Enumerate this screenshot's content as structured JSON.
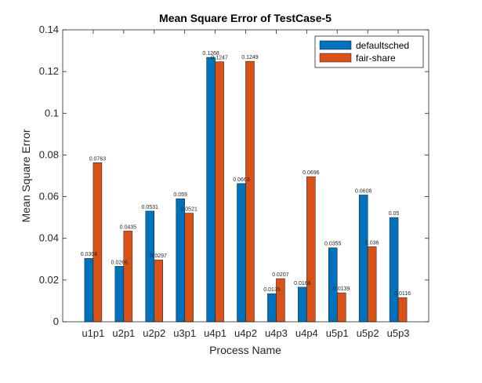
{
  "chart_data": {
    "type": "bar",
    "title": "Mean Square Error of TestCase-5",
    "xlabel": "Process Name",
    "ylabel": "Mean Square Error",
    "ylim": [
      0,
      0.14
    ],
    "yticks": [
      "0",
      "0.02",
      "0.04",
      "0.06",
      "0.08",
      "0.1",
      "0.12",
      "0.14"
    ],
    "categories": [
      "u1p1",
      "u2p1",
      "u2p2",
      "u3p1",
      "u4p1",
      "u4p2",
      "u4p3",
      "u4p4",
      "u5p1",
      "u5p2",
      "u5p3"
    ],
    "series": [
      {
        "name": "defaultsched",
        "color": "#0072BD",
        "values": [
          0.0304,
          0.0266,
          0.0531,
          0.059,
          0.1268,
          0.0663,
          0.0135,
          0.0166,
          0.0355,
          0.0608,
          0.05
        ],
        "labels": [
          "0.0304",
          "0.0266",
          "0.0531",
          "0.059",
          "0.1268",
          "0.0663",
          "0.0135",
          "0.0166",
          "0.0355",
          "0.0608",
          "0.05"
        ]
      },
      {
        "name": "fair-share",
        "color": "#D95319",
        "values": [
          0.0763,
          0.0435,
          0.0297,
          0.0521,
          0.1247,
          0.1249,
          0.0207,
          0.0696,
          0.0139,
          0.036,
          0.0116
        ],
        "labels": [
          "0.0763",
          "0.0435",
          "0.0297",
          "0.0521",
          "0.1247",
          "0.1249",
          "0.0207",
          "0.0696",
          "0.0139",
          "0.036",
          "0.0116"
        ]
      }
    ],
    "grid": false,
    "legend": "top-right"
  }
}
